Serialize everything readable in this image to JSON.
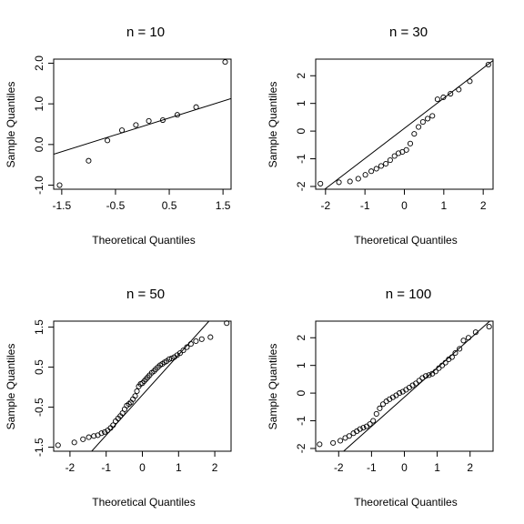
{
  "chart_data": [
    {
      "type": "scatter",
      "title": "n = 10",
      "xlabel": "Theoretical Quantiles",
      "ylabel": "Sample Quantiles",
      "xlim": [
        -1.65,
        1.65
      ],
      "ylim": [
        -1.1,
        2.1
      ],
      "xticks": [
        -1.5,
        -0.5,
        0.5,
        1.5
      ],
      "xtick_labels": [
        "-1.5",
        "-0.5",
        "0.5",
        "1.5"
      ],
      "yticks": [
        -1.0,
        0.0,
        1.0,
        2.0
      ],
      "ytick_labels": [
        "-1.0",
        "0.0",
        "1.0",
        "2.0"
      ],
      "points": {
        "x": [
          -1.54,
          -1.0,
          -0.65,
          -0.38,
          -0.12,
          0.12,
          0.38,
          0.65,
          1.0,
          1.54
        ],
        "y": [
          -1.0,
          -0.4,
          0.1,
          0.35,
          0.48,
          0.58,
          0.6,
          0.73,
          0.92,
          2.03
        ]
      },
      "qqline": {
        "x": [
          -1.65,
          1.65
        ],
        "y": [
          -0.24,
          1.13
        ]
      }
    },
    {
      "type": "scatter",
      "title": "n = 30",
      "xlabel": "Theoretical Quantiles",
      "ylabel": "Sample Quantiles",
      "xlim": [
        -2.25,
        2.25
      ],
      "ylim": [
        -2.1,
        2.6
      ],
      "xticks": [
        -2,
        -1,
        0,
        1,
        2
      ],
      "xtick_labels": [
        "-2",
        "-1",
        "0",
        "1",
        "2"
      ],
      "yticks": [
        -2,
        -1,
        0,
        1,
        2
      ],
      "ytick_labels": [
        "-2",
        "-1",
        "0",
        "1",
        "2"
      ],
      "points": {
        "x": [
          -2.13,
          -1.66,
          -1.38,
          -1.17,
          -0.99,
          -0.84,
          -0.71,
          -0.59,
          -0.47,
          -0.36,
          -0.25,
          -0.15,
          -0.05,
          0.05,
          0.15,
          0.25,
          0.36,
          0.47,
          0.59,
          0.71,
          0.84,
          0.99,
          1.17,
          1.38,
          1.66,
          2.13
        ],
        "y": [
          -1.9,
          -1.85,
          -1.82,
          -1.72,
          -1.58,
          -1.45,
          -1.36,
          -1.26,
          -1.18,
          -1.05,
          -0.9,
          -0.8,
          -0.75,
          -0.68,
          -0.45,
          -0.1,
          0.15,
          0.33,
          0.45,
          0.55,
          1.15,
          1.22,
          1.35,
          1.5,
          1.8,
          2.4
        ]
      },
      "qqline": {
        "x": [
          -2.25,
          2.25
        ],
        "y": [
          -2.35,
          2.55
        ]
      }
    },
    {
      "type": "scatter",
      "title": "n = 50",
      "xlabel": "Theoretical Quantiles",
      "ylabel": "Sample Quantiles",
      "xlim": [
        -2.45,
        2.45
      ],
      "ylim": [
        -1.6,
        1.65
      ],
      "xticks": [
        -2,
        -1,
        0,
        1,
        2
      ],
      "xtick_labels": [
        "-2",
        "-1",
        "0",
        "1",
        "2"
      ],
      "yticks": [
        -1.5,
        -0.5,
        0.5,
        1.5
      ],
      "ytick_labels": [
        "-1.5",
        "-0.5",
        "0.5",
        "1.5"
      ],
      "points": {
        "x": [
          -2.33,
          -1.88,
          -1.64,
          -1.48,
          -1.34,
          -1.23,
          -1.13,
          -1.04,
          -0.96,
          -0.88,
          -0.81,
          -0.74,
          -0.67,
          -0.61,
          -0.55,
          -0.49,
          -0.43,
          -0.37,
          -0.32,
          -0.26,
          -0.2,
          -0.15,
          -0.1,
          -0.05,
          0.0,
          0.05,
          0.1,
          0.15,
          0.2,
          0.26,
          0.32,
          0.37,
          0.43,
          0.49,
          0.55,
          0.61,
          0.67,
          0.74,
          0.81,
          0.88,
          0.96,
          1.04,
          1.13,
          1.23,
          1.34,
          1.48,
          1.64,
          1.88,
          2.33
        ],
        "y": [
          -1.45,
          -1.38,
          -1.3,
          -1.25,
          -1.22,
          -1.2,
          -1.15,
          -1.12,
          -1.08,
          -1.02,
          -0.95,
          -0.85,
          -0.78,
          -0.72,
          -0.65,
          -0.55,
          -0.46,
          -0.42,
          -0.38,
          -0.3,
          -0.22,
          -0.1,
          0.02,
          0.08,
          0.1,
          0.15,
          0.2,
          0.25,
          0.3,
          0.36,
          0.4,
          0.45,
          0.5,
          0.55,
          0.58,
          0.62,
          0.65,
          0.7,
          0.72,
          0.75,
          0.8,
          0.85,
          0.92,
          1.0,
          1.08,
          1.15,
          1.2,
          1.25,
          1.6
        ]
      },
      "qqline": {
        "x": [
          -1.4,
          1.84
        ],
        "y": [
          -1.6,
          1.65
        ]
      }
    },
    {
      "type": "scatter",
      "title": "n = 100",
      "xlabel": "Theoretical Quantiles",
      "ylabel": "Sample Quantiles",
      "xlim": [
        -2.7,
        2.7
      ],
      "ylim": [
        -2.1,
        2.6
      ],
      "xticks": [
        -2,
        -1,
        0,
        1,
        2
      ],
      "xtick_labels": [
        "-2",
        "-1",
        "0",
        "1",
        "2"
      ],
      "yticks": [
        -2,
        -1,
        0,
        1,
        2
      ],
      "ytick_labels": [
        "-2",
        "-1",
        "0",
        "1",
        "2"
      ],
      "points": {
        "x": [
          -2.58,
          -2.17,
          -1.95,
          -1.8,
          -1.68,
          -1.55,
          -1.45,
          -1.35,
          -1.25,
          -1.15,
          -1.05,
          -0.95,
          -0.85,
          -0.75,
          -0.65,
          -0.55,
          -0.45,
          -0.35,
          -0.25,
          -0.15,
          -0.05,
          0.05,
          0.15,
          0.25,
          0.35,
          0.45,
          0.55,
          0.65,
          0.75,
          0.85,
          0.95,
          1.05,
          1.15,
          1.25,
          1.35,
          1.45,
          1.55,
          1.68,
          1.8,
          1.95,
          2.17,
          2.58
        ],
        "y": [
          -1.85,
          -1.8,
          -1.72,
          -1.62,
          -1.55,
          -1.45,
          -1.38,
          -1.3,
          -1.25,
          -1.2,
          -1.12,
          -1.0,
          -0.75,
          -0.55,
          -0.4,
          -0.3,
          -0.22,
          -0.15,
          -0.08,
          0.0,
          0.05,
          0.12,
          0.2,
          0.28,
          0.35,
          0.45,
          0.55,
          0.62,
          0.65,
          0.7,
          0.78,
          0.9,
          1.0,
          1.1,
          1.22,
          1.3,
          1.45,
          1.6,
          1.9,
          2.0,
          2.2,
          2.4
        ]
      },
      "qqline": {
        "x": [
          -1.85,
          2.6
        ],
        "y": [
          -2.1,
          2.6
        ]
      }
    }
  ]
}
